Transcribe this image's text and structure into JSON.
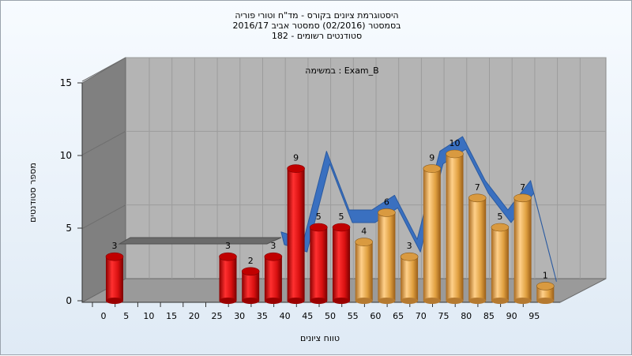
{
  "title_lines": [
    "היסטוגרמת ציונים בקורס - מד\"ח וטורי פוריה",
    "בסמסטר  (02/2016)  סמסטר אביב 2016/17",
    "סטודנטים רשומים - 182"
  ],
  "chart_data": {
    "type": "bar",
    "annotation": "Exam_B : במשימה",
    "xlabel": "טווח ציונים",
    "ylabel": "מספר סטודנטים",
    "ylim": [
      0,
      15
    ],
    "y_ticks": [
      "0",
      "5",
      "10",
      "15"
    ],
    "x_ticks": [
      "0",
      "5",
      "10",
      "15",
      "20",
      "25",
      "30",
      "35",
      "40",
      "45",
      "50",
      "55",
      "60",
      "65",
      "70",
      "75",
      "80",
      "85",
      "90",
      "95"
    ],
    "bars": [
      {
        "bin": 0,
        "value": 3,
        "color": "#e82020"
      },
      {
        "bin": 5,
        "value": 0,
        "color": "#e82020"
      },
      {
        "bin": 10,
        "value": 0,
        "color": "#e82020"
      },
      {
        "bin": 15,
        "value": 0,
        "color": "#e82020"
      },
      {
        "bin": 20,
        "value": 0,
        "color": "#e82020"
      },
      {
        "bin": 25,
        "value": 3,
        "color": "#e82020"
      },
      {
        "bin": 30,
        "value": 2,
        "color": "#e82020"
      },
      {
        "bin": 35,
        "value": 3,
        "color": "#e82020"
      },
      {
        "bin": 40,
        "value": 9,
        "color": "#e82020"
      },
      {
        "bin": 45,
        "value": 5,
        "color": "#e82020"
      },
      {
        "bin": 50,
        "value": 5,
        "color": "#e82020"
      },
      {
        "bin": 55,
        "value": 4,
        "color": "#e8a34a"
      },
      {
        "bin": 60,
        "value": 6,
        "color": "#e8a34a"
      },
      {
        "bin": 65,
        "value": 3,
        "color": "#e8a34a"
      },
      {
        "bin": 70,
        "value": 9,
        "color": "#e8a34a"
      },
      {
        "bin": 75,
        "value": 10,
        "color": "#e8a34a"
      },
      {
        "bin": 80,
        "value": 7,
        "color": "#e8a34a"
      },
      {
        "bin": 85,
        "value": 5,
        "color": "#e8a34a"
      },
      {
        "bin": 90,
        "value": 7,
        "color": "#e8a34a"
      },
      {
        "bin": 95,
        "value": 1,
        "color": "#e8a34a"
      }
    ],
    "trend_line": {
      "color": "#3a70c0",
      "values": [
        3.5,
        3.5,
        3.5,
        3.5,
        3.5,
        3.5,
        3.5,
        3.5,
        3.0,
        9.0,
        5.0,
        5.0,
        6.0,
        3.0,
        9.0,
        10.0,
        7.0,
        5.0,
        7.0,
        1.0
      ]
    },
    "grid": true
  },
  "colors": {
    "plot_back": "#b4b4b4",
    "plot_wall": "#808080",
    "plot_floor": "#9a9a9a",
    "fail": "#e82020",
    "pass": "#e8a34a"
  }
}
